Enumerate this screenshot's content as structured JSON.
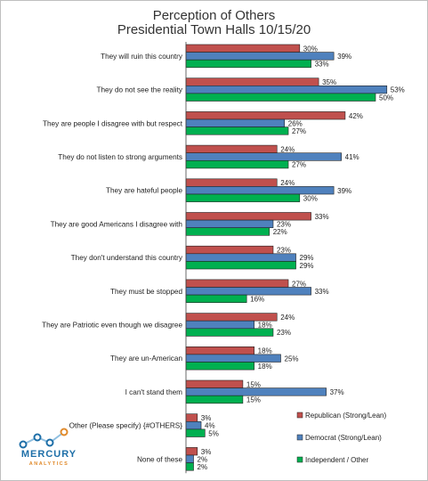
{
  "chart_data": {
    "type": "bar",
    "orientation": "horizontal",
    "title": "Perception of Others",
    "subtitle": "Presidential Town Halls 10/15/20",
    "categories": [
      "They will ruin this country",
      "They do not see the reality",
      "They are people I disagree with but respect",
      "They do not listen to strong arguments",
      "They are hateful people",
      "They are good Americans I disagree with",
      "They don't understand this country",
      "They must be stopped",
      "They are Patriotic even though we disagree",
      "They are un-American",
      "I can't stand them",
      "Other (Please specify) {#OTHERS}",
      "None of these"
    ],
    "series": [
      {
        "name": "Republican (Strong/Lean)",
        "color": "#c0504d",
        "values": [
          30,
          35,
          42,
          24,
          24,
          33,
          23,
          27,
          24,
          18,
          15,
          3,
          3
        ]
      },
      {
        "name": "Democrat (Strong/Lean)",
        "color": "#4f81bd",
        "values": [
          39,
          53,
          26,
          41,
          39,
          23,
          29,
          33,
          18,
          25,
          37,
          4,
          2
        ]
      },
      {
        "name": "Independent / Other",
        "color": "#00b050",
        "values": [
          33,
          50,
          27,
          27,
          30,
          22,
          29,
          16,
          23,
          18,
          15,
          5,
          2
        ]
      }
    ],
    "value_suffix": "%",
    "xlim": [
      0,
      55
    ],
    "grid": false,
    "legend_position": "bottom-right"
  },
  "branding": {
    "logo_text": "MERCURY",
    "logo_subtext": "ANALYTICS",
    "logo_colors": {
      "line": "#8fbfe0",
      "dot_blue": "#1e6fa8",
      "dot_orange": "#e08a2b"
    }
  }
}
